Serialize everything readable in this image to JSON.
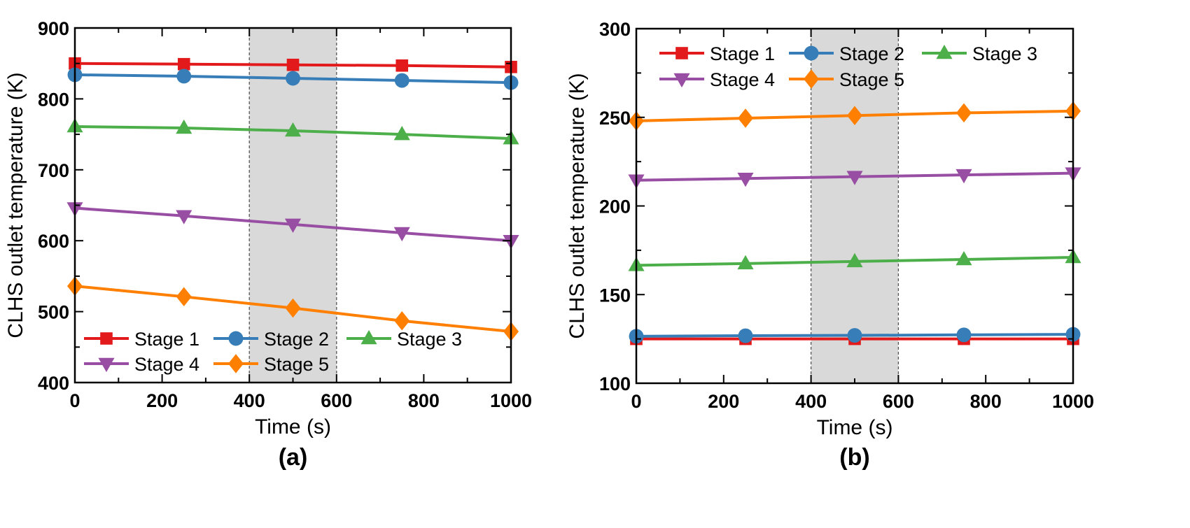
{
  "chart_data": [
    {
      "type": "line",
      "panel_label": "(a)",
      "xlabel": "Time (s)",
      "ylabel": "CLHS outlet temperature (K)",
      "xlim": [
        0,
        1000
      ],
      "ylim": [
        400,
        900
      ],
      "xticks": [
        0,
        200,
        400,
        600,
        800,
        1000
      ],
      "yticks": [
        400,
        500,
        600,
        700,
        800,
        900
      ],
      "highlight_band": [
        400,
        600
      ],
      "legend_position": "bottom-left",
      "x": [
        0,
        250,
        500,
        750,
        1000
      ],
      "series": [
        {
          "name": "Stage 1",
          "color": "#e31a1c",
          "marker": "square",
          "values": [
            850,
            849,
            848,
            847,
            845
          ]
        },
        {
          "name": "Stage 2",
          "color": "#377eb8",
          "marker": "circle",
          "values": [
            834,
            832,
            829,
            826,
            823
          ]
        },
        {
          "name": "Stage 3",
          "color": "#4daf4a",
          "marker": "triangle-up",
          "values": [
            761,
            759,
            755,
            750,
            744
          ]
        },
        {
          "name": "Stage 4",
          "color": "#984ea3",
          "marker": "triangle-down",
          "values": [
            646,
            635,
            623,
            611,
            600
          ]
        },
        {
          "name": "Stage 5",
          "color": "#ff7f00",
          "marker": "diamond",
          "values": [
            536,
            521,
            505,
            487,
            472
          ]
        }
      ]
    },
    {
      "type": "line",
      "panel_label": "(b)",
      "xlabel": "Time (s)",
      "ylabel": "CLHS outlet temperature (K)",
      "xlim": [
        0,
        1000
      ],
      "ylim": [
        100,
        300
      ],
      "xticks": [
        0,
        200,
        400,
        600,
        800,
        1000
      ],
      "yticks": [
        100,
        150,
        200,
        250,
        300
      ],
      "highlight_band": [
        400,
        600
      ],
      "legend_position": "top-left",
      "x": [
        0,
        250,
        500,
        750,
        1000
      ],
      "series": [
        {
          "name": "Stage 1",
          "color": "#e31a1c",
          "marker": "square",
          "values": [
            125,
            125,
            125,
            125,
            125
          ]
        },
        {
          "name": "Stage 2",
          "color": "#377eb8",
          "marker": "circle",
          "values": [
            126.5,
            126.8,
            127,
            127.3,
            127.6
          ]
        },
        {
          "name": "Stage 3",
          "color": "#4daf4a",
          "marker": "triangle-up",
          "values": [
            166.5,
            167.5,
            168.7,
            169.8,
            171
          ]
        },
        {
          "name": "Stage 4",
          "color": "#984ea3",
          "marker": "triangle-down",
          "values": [
            214.5,
            215.5,
            216.5,
            217.5,
            218.5
          ]
        },
        {
          "name": "Stage 5",
          "color": "#ff7f00",
          "marker": "diamond",
          "values": [
            248,
            249.5,
            251,
            252.5,
            253.5
          ]
        }
      ]
    }
  ]
}
